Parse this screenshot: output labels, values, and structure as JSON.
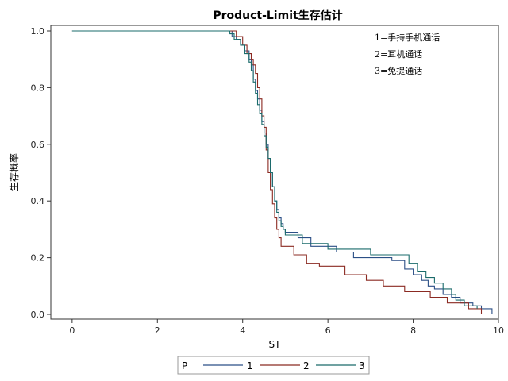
{
  "chart_data": {
    "type": "line",
    "step": true,
    "title": "Product-Limit生存估计",
    "xlabel": "ST",
    "ylabel": "生存概率",
    "xlim": [
      -0.5,
      10.0
    ],
    "ylim": [
      0.0,
      1.0
    ],
    "xticks": [
      0,
      2,
      4,
      6,
      8,
      10
    ],
    "yticks": [
      0.0,
      0.2,
      0.4,
      0.6,
      0.8,
      1.0
    ],
    "grid": false,
    "annotations": [
      "1=手持手机通话",
      "2=耳机通话",
      "3=免提通话"
    ],
    "legend": {
      "title": "P",
      "placement": "bottom",
      "entries": [
        "1",
        "2",
        "3"
      ]
    },
    "series": [
      {
        "name": "1",
        "color": "#2b4f86",
        "x": [
          0,
          3.75,
          3.85,
          3.95,
          4.05,
          4.15,
          4.2,
          4.25,
          4.3,
          4.35,
          4.4,
          4.45,
          4.5,
          4.55,
          4.6,
          4.65,
          4.7,
          4.75,
          4.8,
          4.85,
          4.9,
          4.95,
          5.0,
          5.3,
          5.6,
          6.2,
          6.6,
          7.5,
          7.8,
          8.0,
          8.2,
          8.35,
          8.5,
          8.7,
          8.9,
          9.1,
          9.4,
          9.6,
          9.85
        ],
        "y": [
          1.0,
          0.98,
          0.97,
          0.95,
          0.93,
          0.9,
          0.88,
          0.83,
          0.79,
          0.76,
          0.72,
          0.68,
          0.64,
          0.6,
          0.55,
          0.5,
          0.45,
          0.4,
          0.37,
          0.34,
          0.32,
          0.3,
          0.29,
          0.27,
          0.24,
          0.22,
          0.2,
          0.19,
          0.16,
          0.14,
          0.12,
          0.1,
          0.09,
          0.07,
          0.06,
          0.04,
          0.03,
          0.02,
          0.0
        ]
      },
      {
        "name": "2",
        "color": "#8b2a22",
        "x": [
          0,
          3.85,
          4.0,
          4.1,
          4.2,
          4.25,
          4.3,
          4.35,
          4.4,
          4.45,
          4.5,
          4.55,
          4.6,
          4.65,
          4.7,
          4.75,
          4.8,
          4.85,
          4.9,
          5.2,
          5.5,
          5.8,
          6.4,
          6.9,
          7.3,
          7.8,
          8.4,
          8.8,
          9.3,
          9.6
        ],
        "y": [
          1.0,
          0.98,
          0.95,
          0.92,
          0.9,
          0.88,
          0.85,
          0.8,
          0.76,
          0.7,
          0.66,
          0.58,
          0.5,
          0.44,
          0.39,
          0.34,
          0.3,
          0.27,
          0.24,
          0.21,
          0.18,
          0.17,
          0.14,
          0.12,
          0.1,
          0.08,
          0.06,
          0.04,
          0.02,
          0.0
        ]
      },
      {
        "name": "3",
        "color": "#1a6b6b",
        "x": [
          0,
          3.7,
          3.8,
          3.95,
          4.05,
          4.15,
          4.2,
          4.25,
          4.3,
          4.35,
          4.4,
          4.45,
          4.5,
          4.55,
          4.6,
          4.65,
          4.7,
          4.75,
          4.8,
          4.85,
          4.9,
          4.95,
          5.0,
          5.4,
          6.0,
          7.0,
          7.9,
          8.1,
          8.3,
          8.5,
          8.7,
          8.9,
          9.0,
          9.2,
          9.5
        ],
        "y": [
          1.0,
          0.99,
          0.97,
          0.95,
          0.92,
          0.89,
          0.86,
          0.82,
          0.78,
          0.74,
          0.71,
          0.67,
          0.63,
          0.59,
          0.55,
          0.5,
          0.45,
          0.4,
          0.36,
          0.33,
          0.31,
          0.3,
          0.28,
          0.25,
          0.23,
          0.21,
          0.18,
          0.15,
          0.13,
          0.11,
          0.09,
          0.07,
          0.05,
          0.03,
          0.02
        ]
      }
    ]
  }
}
